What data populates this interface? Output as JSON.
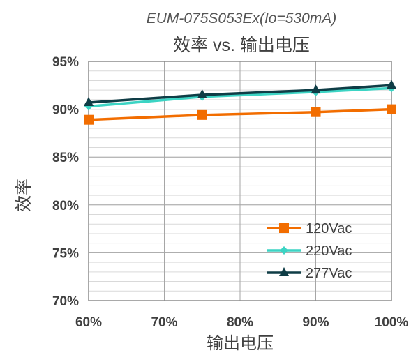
{
  "chart_data": {
    "type": "line",
    "subtitle": "EUM-075S053Ex(Io=530mA)",
    "title": "效率 vs. 输出电压",
    "xlabel": "输出电压",
    "ylabel": "效率",
    "x": [
      60,
      75,
      90,
      100
    ],
    "xlim": [
      60,
      100
    ],
    "ylim": [
      70,
      95
    ],
    "x_ticks": [
      "60%",
      "70%",
      "80%",
      "90%",
      "100%"
    ],
    "x_tick_values": [
      60,
      70,
      80,
      90,
      100
    ],
    "y_ticks": [
      "95%",
      "90%",
      "85%",
      "80%",
      "75%",
      "70%"
    ],
    "y_tick_values": [
      95,
      90,
      85,
      80,
      75,
      70
    ],
    "grid": true,
    "legend_position": "bottom-right",
    "series": [
      {
        "name": "120Vac",
        "values": [
          88.9,
          89.4,
          89.7,
          90.0
        ],
        "color": "#f26d00",
        "marker": "square"
      },
      {
        "name": "220Vac",
        "values": [
          90.3,
          91.3,
          91.8,
          92.2
        ],
        "color": "#3cd4c4",
        "marker": "diamond"
      },
      {
        "name": "277Vac",
        "values": [
          90.7,
          91.5,
          92.0,
          92.5
        ],
        "color": "#0f3d46",
        "marker": "triangle"
      }
    ]
  }
}
